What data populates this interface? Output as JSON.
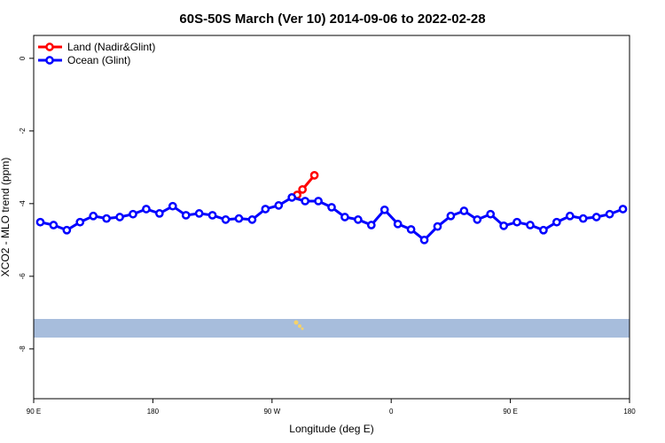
{
  "chart_data": {
    "type": "line",
    "title": "60S-50S March (Ver 10)   2014-09-06 to 2022-02-28",
    "x_label": "Longitude (deg E)",
    "y_label": "XCO2 - MLO trend (ppm)",
    "xlim": [
      90,
      540
    ],
    "xticks": [
      {
        "value": 90,
        "label": "90 E"
      },
      {
        "value": 180,
        "label": "180"
      },
      {
        "value": 270,
        "label": "90 W"
      },
      {
        "value": 360,
        "label": "0"
      },
      {
        "value": 450,
        "label": "90 E"
      },
      {
        "value": 540,
        "label": "180"
      }
    ],
    "ylim": [
      -9.37,
      0.63
    ],
    "yticks": [
      0,
      -2,
      -4,
      -6,
      -8
    ],
    "legend": "top-left",
    "series": [
      {
        "name": "Land (Nadir&Glint)",
        "color": "#ff0000",
        "x": [
          289,
          293,
          302
        ],
        "values": [
          -3.76,
          -3.61,
          -3.22
        ]
      },
      {
        "name": "Ocean (Glint)",
        "color": "#0000ff",
        "x": [
          95,
          105,
          115,
          125,
          135,
          145,
          155,
          165,
          175,
          185,
          195,
          205,
          215,
          225,
          235,
          245,
          255,
          265,
          275,
          285,
          295,
          305,
          315,
          325,
          335,
          345,
          355,
          365,
          375,
          385,
          395,
          405,
          415,
          425,
          435,
          445,
          455,
          465,
          475,
          485,
          495,
          505,
          515,
          525,
          535
        ],
        "values": [
          -4.51,
          -4.59,
          -4.73,
          -4.51,
          -4.34,
          -4.41,
          -4.37,
          -4.29,
          -4.15,
          -4.27,
          -4.07,
          -4.32,
          -4.27,
          -4.32,
          -4.44,
          -4.41,
          -4.44,
          -4.15,
          -4.05,
          -3.83,
          -3.93,
          -3.93,
          -4.1,
          -4.37,
          -4.44,
          -4.59,
          -4.17,
          -4.56,
          -4.71,
          -5.0,
          -4.63,
          -4.34,
          -4.2,
          -4.44,
          -4.29,
          -4.61,
          -4.51,
          -4.59,
          -4.73,
          -4.51,
          -4.34,
          -4.41,
          -4.37,
          -4.29,
          -4.15
        ]
      }
    ]
  }
}
